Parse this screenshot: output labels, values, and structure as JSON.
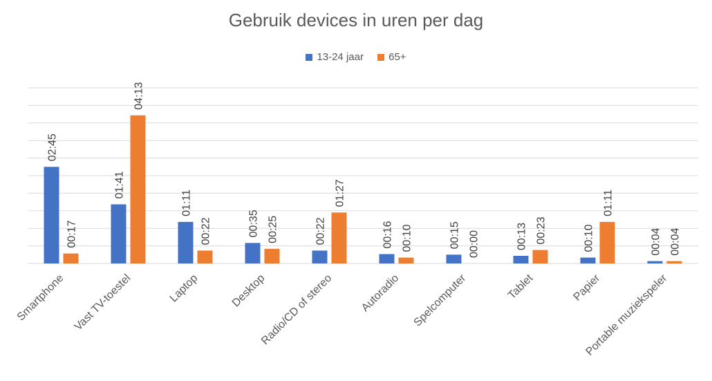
{
  "chart_data": {
    "type": "bar",
    "title": "Gebruik devices in uren per dag",
    "categories": [
      "Smartphone",
      "Vast TV-toestel",
      "Laptop",
      "Desktop",
      "Radio/CD of stereo",
      "Autoradio",
      "Spelcomputer",
      "Tablet",
      "Papier",
      "Portable muziekspeler"
    ],
    "series": [
      {
        "name": "13-24 jaar",
        "color": "#4472C4",
        "values": [
          165,
          101,
          71,
          35,
          22,
          16,
          15,
          13,
          10,
          4
        ],
        "labels": [
          "02:45",
          "01:41",
          "01:11",
          "00:35",
          "00:22",
          "00:16",
          "00:15",
          "00:13",
          "00:10",
          "00:04"
        ]
      },
      {
        "name": "65+",
        "color": "#ED7D31",
        "values": [
          17,
          253,
          22,
          25,
          87,
          10,
          0,
          23,
          71,
          4
        ],
        "labels": [
          "00:17",
          "04:13",
          "00:22",
          "00:25",
          "01:27",
          "00:10",
          "00:00",
          "00:23",
          "01:11",
          "00:04"
        ]
      }
    ],
    "ylim": [
      0,
      300
    ],
    "grid": true,
    "legend": "top"
  }
}
